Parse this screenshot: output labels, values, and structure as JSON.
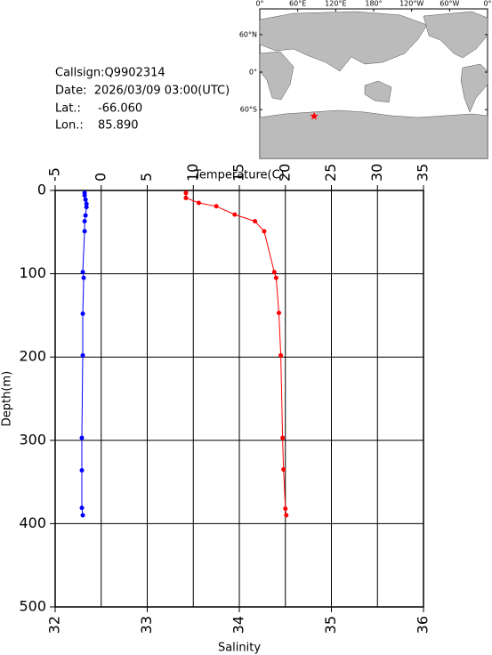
{
  "info": {
    "callsign": "Callsign:Q9902314",
    "date": "Date:  2026/03/09 03:00(UTC)",
    "lat_label": "Lat.:",
    "lat": {
      "value": -66.06,
      "label": "-66.060"
    },
    "lon_label": "Lon.:",
    "lon": {
      "value": 85.89,
      "label": "85.890"
    }
  },
  "map": {
    "lonticks": [
      {
        "value": 0,
        "label": "0°"
      },
      {
        "value": 60,
        "label": "60°E"
      },
      {
        "value": 120,
        "label": "120°E"
      },
      {
        "value": 180,
        "label": "180°"
      },
      {
        "value": 240,
        "label": "120°W"
      },
      {
        "value": 300,
        "label": "60°W"
      },
      {
        "value": 360,
        "label": "0°"
      }
    ],
    "latticks": [
      {
        "value": 60,
        "label": "60°N"
      },
      {
        "value": 0,
        "label": "0°"
      },
      {
        "value": -60,
        "label": "60°S"
      }
    ],
    "marker_color": "#ff0000"
  },
  "chart_data": {
    "type": "line",
    "x2label": "Temperature(C)",
    "xlabel": "Salinity",
    "ylabel": "Depth(m)",
    "x2lim": [
      -5,
      35
    ],
    "x2ticks": [
      -5,
      0,
      5,
      10,
      15,
      20,
      25,
      30,
      35
    ],
    "xlim": [
      32,
      36
    ],
    "xticks": [
      32,
      33,
      34,
      35,
      36
    ],
    "ylim": [
      0,
      500
    ],
    "yticks": [
      0,
      100,
      200,
      300,
      400,
      500
    ],
    "y_inverted": true,
    "grid": true,
    "series": [
      {
        "axis": "x2",
        "color": "#0000ff",
        "depth": [
          3,
          6,
          11,
          16,
          20,
          30,
          37,
          49,
          98,
          105,
          148,
          198,
          297,
          336,
          381,
          390
        ],
        "values": [
          -1.8,
          -1.8,
          -1.7,
          -1.6,
          -1.6,
          -1.7,
          -1.8,
          -1.8,
          -2.0,
          -1.9,
          -2.0,
          -2.0,
          -2.1,
          -2.1,
          -2.1,
          -2.0
        ]
      },
      {
        "axis": "x",
        "color": "#ff0000",
        "depth": [
          3,
          9,
          15,
          19,
          29,
          37,
          49,
          98,
          105,
          147,
          198,
          297,
          335,
          382,
          390
        ],
        "values": [
          33.42,
          33.42,
          33.56,
          33.75,
          33.95,
          34.17,
          34.27,
          34.38,
          34.4,
          34.43,
          34.45,
          34.47,
          34.48,
          34.5,
          34.51
        ]
      }
    ]
  }
}
